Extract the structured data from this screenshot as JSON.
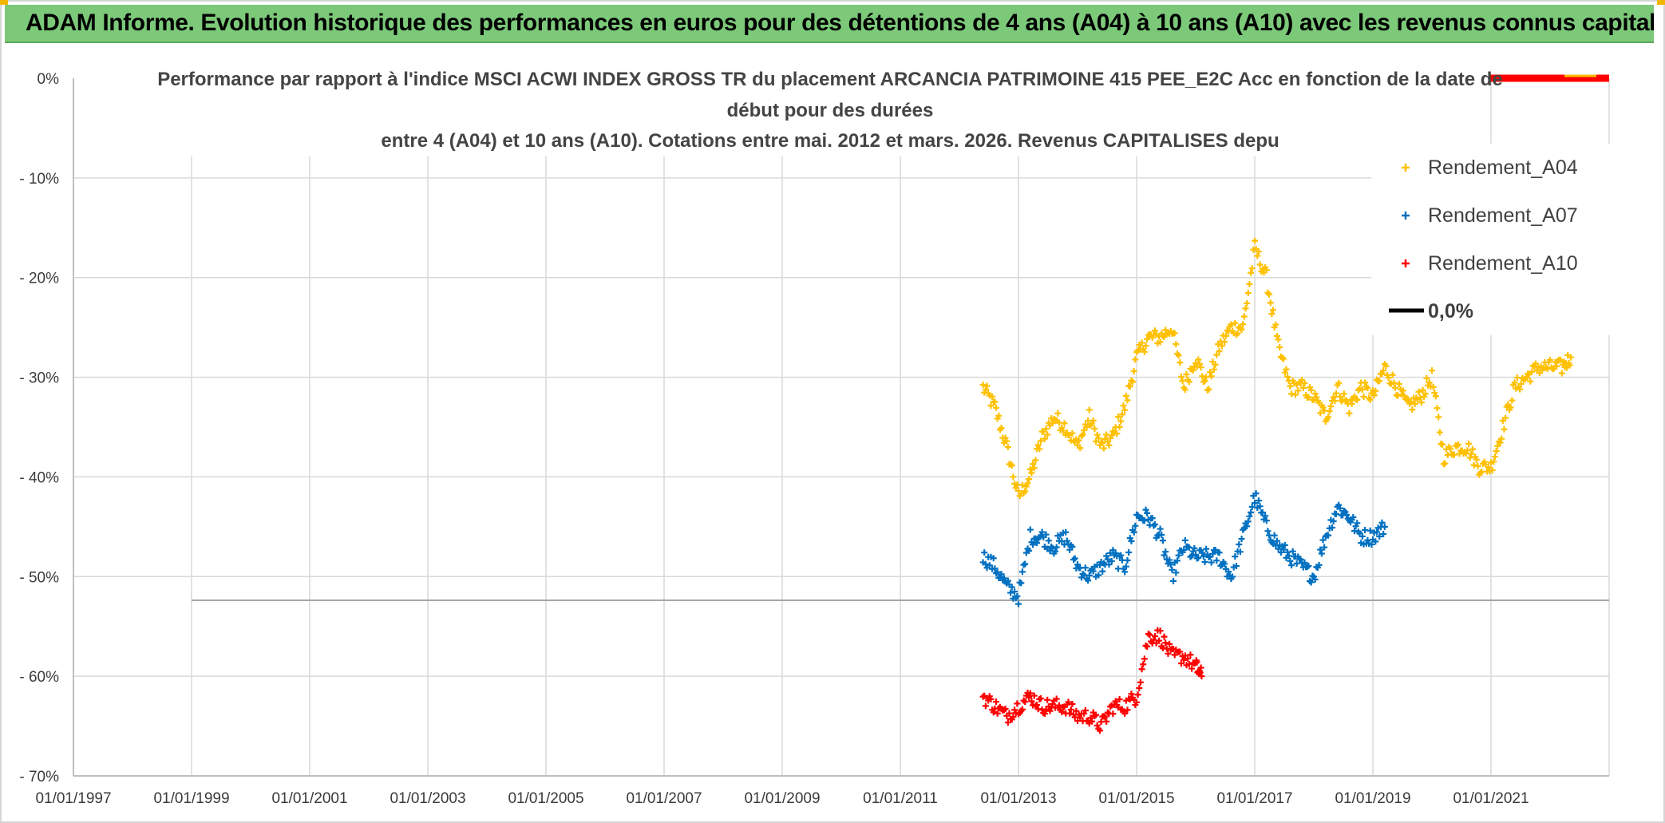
{
  "banner": {
    "title": "ADAM Informe. Evolution historique des performances en euros pour des détentions de 4 ans (A04) à 10 ans (A10) avec les revenus connus capitalisés"
  },
  "colors": {
    "banner_bg": "#7cc97a",
    "a04": "#ffc000",
    "a07": "#0070c0",
    "a10": "#ff0000",
    "zero_line": "#000000",
    "grid": "#d9d9d9"
  },
  "chart_data": {
    "type": "scatter",
    "title_lines": [
      "Performance par rapport à l'indice MSCI ACWI INDEX GROSS TR  du placement ARCANCIA PATRIMOINE 415 PEE_E2C Acc en fonction de la date de",
      "début pour des durées",
      "entre 4 (A04) et 10 ans (A10). Cotations entre mai. 2012 et mars. 2026. Revenus CAPITALISES depu"
    ],
    "xlabel": "",
    "ylabel": "",
    "x_range": [
      1997.0,
      2023.0
    ],
    "x_ticks": [
      "01/01/1997",
      "01/01/1999",
      "01/01/2001",
      "01/01/2003",
      "01/01/2005",
      "01/01/2007",
      "01/01/2009",
      "01/01/2011",
      "01/01/2013",
      "01/01/2015",
      "01/01/2017",
      "01/01/2019",
      "01/01/2021"
    ],
    "x_tick_values": [
      1997,
      1999,
      2001,
      2003,
      2005,
      2007,
      2009,
      2011,
      2013,
      2015,
      2017,
      2019,
      2021
    ],
    "y_range": [
      -70,
      0
    ],
    "y_ticks": [
      "0%",
      "- 10%",
      "- 20%",
      "- 30%",
      "- 40%",
      "- 50%",
      "- 60%",
      "- 70%"
    ],
    "y_tick_values": [
      0,
      -10,
      -20,
      -30,
      -40,
      -50,
      -60,
      -70
    ],
    "grid": true,
    "legend_position": "top-right",
    "legend": [
      "Rendement_A04",
      "Rendement_A07",
      "Rendement_A10",
      "0,0%"
    ],
    "reference_line": {
      "name": "0,0%",
      "value": 0
    },
    "series": [
      {
        "name": "Rendement_A04",
        "x": [
          2012.4,
          2012.6,
          2012.8,
          2013.0,
          2013.2,
          2013.4,
          2013.6,
          2013.8,
          2014.0,
          2014.2,
          2014.4,
          2014.6,
          2014.8,
          2015.0,
          2015.2,
          2015.4,
          2015.6,
          2015.8,
          2016.0,
          2016.2,
          2016.4,
          2016.6,
          2016.8,
          2017.0,
          2017.2,
          2017.4,
          2017.6,
          2017.8,
          2018.0,
          2018.2,
          2018.4,
          2018.6,
          2018.8,
          2019.0,
          2019.2,
          2019.4,
          2019.6,
          2019.8,
          2020.0,
          2020.2,
          2020.4,
          2020.6,
          2020.8,
          2021.0,
          2021.2,
          2021.4,
          2021.6,
          2021.8,
          2022.0,
          2022.2,
          2022.35
        ],
        "y": [
          -31,
          -33,
          -37,
          -42,
          -40,
          -36,
          -34,
          -35,
          -37,
          -34,
          -37,
          -36,
          -33,
          -28,
          -26,
          -26,
          -25,
          -31,
          -28,
          -31,
          -27,
          -25,
          -25,
          -17,
          -20,
          -27,
          -31,
          -31,
          -32,
          -34,
          -31,
          -33,
          -31,
          -32,
          -29,
          -31,
          -33,
          -32,
          -30,
          -38,
          -37,
          -37,
          -39,
          -39,
          -35,
          -31,
          -30,
          -29,
          -29,
          -29,
          -28
        ]
      },
      {
        "name": "Rendement_A07",
        "x": [
          2012.4,
          2012.6,
          2012.8,
          2013.0,
          2013.2,
          2013.4,
          2013.6,
          2013.8,
          2014.0,
          2014.2,
          2014.4,
          2014.6,
          2014.8,
          2015.0,
          2015.2,
          2015.4,
          2015.6,
          2015.8,
          2016.0,
          2016.2,
          2016.4,
          2016.6,
          2016.8,
          2017.0,
          2017.2,
          2017.4,
          2017.6,
          2017.8,
          2018.0,
          2018.2,
          2018.4,
          2018.6,
          2018.8,
          2019.0,
          2019.2
        ],
        "y": [
          -48,
          -49,
          -51,
          -52,
          -46,
          -46,
          -47,
          -46,
          -49,
          -50,
          -49,
          -48,
          -49,
          -44,
          -44,
          -46,
          -50,
          -47,
          -48,
          -48,
          -48,
          -50,
          -46,
          -42,
          -45,
          -47,
          -48,
          -49,
          -50,
          -46,
          -43,
          -44,
          -46,
          -46,
          -45
        ]
      },
      {
        "name": "Rendement_A10",
        "x": [
          2012.4,
          2012.6,
          2012.8,
          2013.0,
          2013.2,
          2013.4,
          2013.6,
          2013.8,
          2014.0,
          2014.2,
          2014.4,
          2014.6,
          2014.8,
          2015.0,
          2015.2,
          2015.4,
          2015.6,
          2015.8,
          2016.0,
          2016.1
        ],
        "y": [
          -62,
          -63,
          -64,
          -63,
          -62,
          -63,
          -63,
          -63,
          -64,
          -64,
          -65,
          -63,
          -63,
          -62,
          -56,
          -56,
          -58,
          -58,
          -59,
          -60
        ]
      }
    ]
  }
}
